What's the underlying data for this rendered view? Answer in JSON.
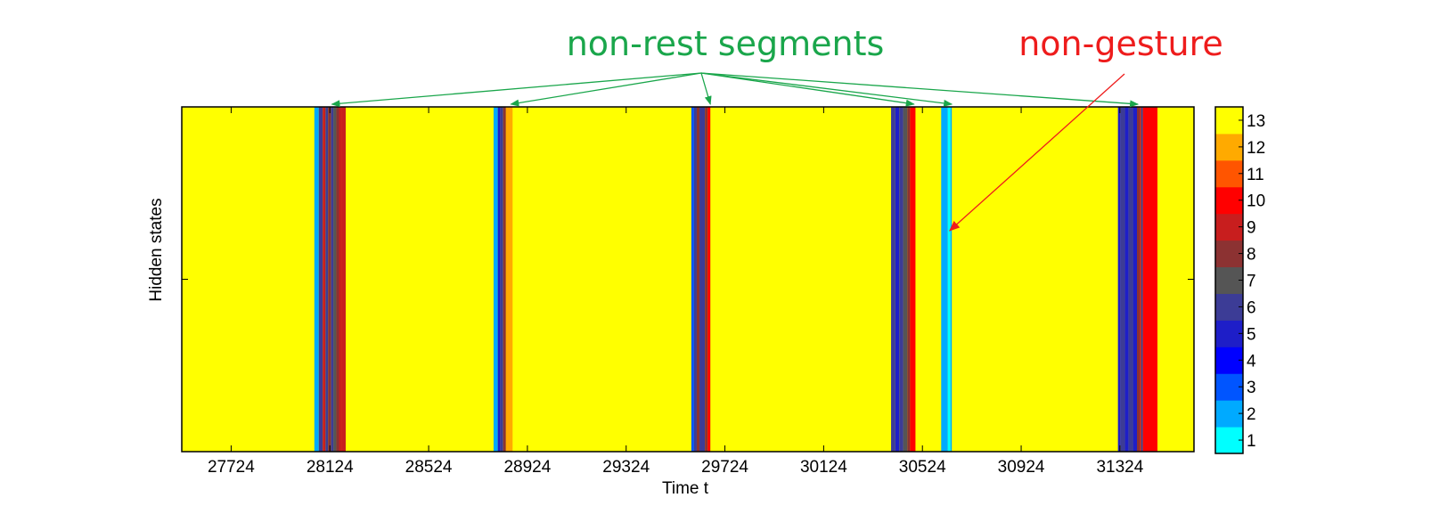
{
  "chart_data": {
    "type": "heatmap",
    "xlabel": "Time t",
    "ylabel": "Hidden states",
    "x_ticks": [
      27724,
      28124,
      28524,
      28924,
      29324,
      29724,
      30124,
      30524,
      30924,
      31324
    ],
    "xlim": [
      27524,
      31624
    ],
    "colorbar": {
      "ticks": [
        1,
        2,
        3,
        4,
        5,
        6,
        7,
        8,
        9,
        10,
        11,
        12,
        13
      ],
      "colors": [
        "#00ffff",
        "#00aaff",
        "#0055ff",
        "#0000ff",
        "#1e1ec8",
        "#3c3c96",
        "#555555",
        "#8c3232",
        "#c81e1e",
        "#ff0000",
        "#ff5500",
        "#ffaa00",
        "#ffff00"
      ]
    },
    "default_state": 13,
    "segments": [
      {
        "start": 28061,
        "end": 28079,
        "state": 2
      },
      {
        "start": 28079,
        "end": 28095,
        "state": 6
      },
      {
        "start": 28095,
        "end": 28106,
        "state": 9
      },
      {
        "start": 28106,
        "end": 28117,
        "state": 6
      },
      {
        "start": 28117,
        "end": 28128,
        "state": 8
      },
      {
        "start": 28128,
        "end": 28139,
        "state": 6
      },
      {
        "start": 28139,
        "end": 28150,
        "state": 7
      },
      {
        "start": 28150,
        "end": 28161,
        "state": 8
      },
      {
        "start": 28161,
        "end": 28172,
        "state": 9
      },
      {
        "start": 28172,
        "end": 28188,
        "state": 9
      },
      {
        "start": 28787,
        "end": 28804,
        "state": 2
      },
      {
        "start": 28804,
        "end": 28815,
        "state": 5
      },
      {
        "start": 28815,
        "end": 28826,
        "state": 6
      },
      {
        "start": 28826,
        "end": 28837,
        "state": 8
      },
      {
        "start": 28837,
        "end": 28864,
        "state": 12
      },
      {
        "start": 29588,
        "end": 29599,
        "state": 3
      },
      {
        "start": 29599,
        "end": 29610,
        "state": 6
      },
      {
        "start": 29610,
        "end": 29621,
        "state": 8
      },
      {
        "start": 29621,
        "end": 29643,
        "state": 6
      },
      {
        "start": 29643,
        "end": 29654,
        "state": 8
      },
      {
        "start": 29654,
        "end": 29665,
        "state": 10
      },
      {
        "start": 30397,
        "end": 30414,
        "state": 6
      },
      {
        "start": 30414,
        "end": 30430,
        "state": 5
      },
      {
        "start": 30430,
        "end": 30447,
        "state": 6
      },
      {
        "start": 30447,
        "end": 30463,
        "state": 7
      },
      {
        "start": 30463,
        "end": 30474,
        "state": 8
      },
      {
        "start": 30474,
        "end": 30496,
        "state": 10
      },
      {
        "start": 30496,
        "end": 30534,
        "state": 13
      },
      {
        "start": 30600,
        "end": 30627,
        "state": 2
      },
      {
        "start": 30627,
        "end": 30638,
        "state": 1
      },
      {
        "start": 30638,
        "end": 30643,
        "state": 2
      },
      {
        "start": 31316,
        "end": 31327,
        "state": 5
      },
      {
        "start": 31327,
        "end": 31344,
        "state": 6
      },
      {
        "start": 31344,
        "end": 31360,
        "state": 5
      },
      {
        "start": 31360,
        "end": 31377,
        "state": 6
      },
      {
        "start": 31377,
        "end": 31393,
        "state": 5
      },
      {
        "start": 31393,
        "end": 31404,
        "state": 8
      },
      {
        "start": 31404,
        "end": 31410,
        "state": 9
      },
      {
        "start": 31410,
        "end": 31417,
        "state": 6
      },
      {
        "start": 31417,
        "end": 31476,
        "state": 10
      }
    ],
    "annotations": {
      "non_rest": {
        "text": "non-rest segments",
        "color": "#1aa64b",
        "targets_x": [
          28132,
          28857,
          29665,
          30490,
          30643,
          31397
        ]
      },
      "non_gesture": {
        "text": "non-gesture",
        "color": "#ee1c1c",
        "target_x": 30627
      }
    }
  }
}
